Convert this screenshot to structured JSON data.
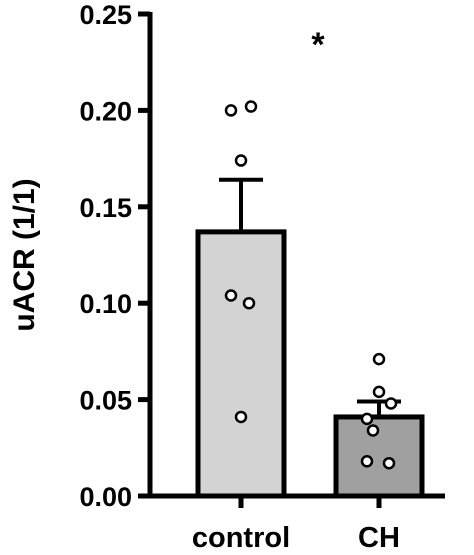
{
  "chart_data": {
    "type": "bar",
    "title": "",
    "xlabel": "",
    "ylabel": "uACR (1/1)",
    "ylim": [
      0,
      0.25
    ],
    "yticks": [
      "0.00",
      "0.05",
      "0.10",
      "0.15",
      "0.20",
      "0.25"
    ],
    "grid": false,
    "categories": [
      "control",
      "CH"
    ],
    "values": [
      0.137,
      0.041
    ],
    "error_sem": [
      0.027,
      0.008
    ],
    "points": [
      [
        0.2,
        0.202,
        0.174,
        0.104,
        0.1,
        0.041
      ],
      [
        0.071,
        0.054,
        0.048,
        0.04,
        0.034,
        0.018,
        0.017
      ]
    ],
    "annotations": [
      {
        "text": "*",
        "position": "above-bars"
      }
    ],
    "colors": {
      "bars": [
        "#d3d3d3",
        "#a0a0a0"
      ],
      "outline": "#000000",
      "points_fill": "#ffffff"
    }
  }
}
